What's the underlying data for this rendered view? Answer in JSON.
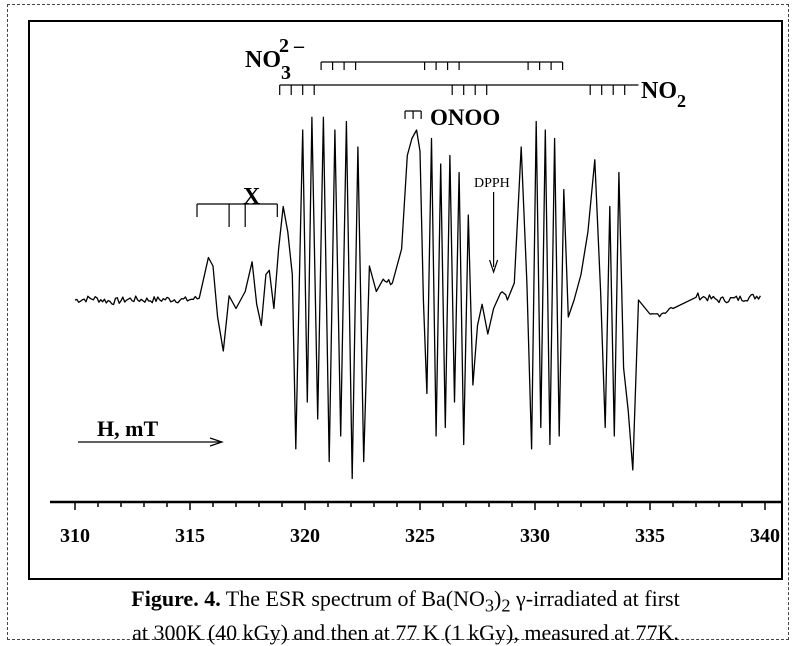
{
  "chart_data": {
    "type": "line",
    "title": "",
    "xlabel": "H, mT",
    "ylabel": "",
    "xlim": [
      310,
      340
    ],
    "xticks": [
      "310",
      "315",
      "320",
      "325",
      "330",
      "335",
      "340"
    ],
    "grid": false,
    "legend": "none",
    "series": [
      {
        "x": [
          310.0,
          310.8,
          311.6,
          312.4,
          313.2,
          314.0,
          314.8,
          315.4,
          315.8,
          316.0,
          316.2,
          316.45,
          316.7,
          317.0,
          317.4,
          317.7,
          317.9,
          318.1,
          318.3,
          318.45,
          318.65,
          318.85,
          319.05,
          319.25,
          319.45,
          319.6,
          319.75,
          319.9,
          320.1,
          320.3,
          320.55,
          320.8,
          321.05,
          321.3,
          321.55,
          321.8,
          322.05,
          322.3,
          322.55,
          322.8,
          323.1,
          323.4,
          323.8,
          324.2,
          324.45,
          324.65,
          324.85,
          325.0,
          325.15,
          325.3,
          325.5,
          325.7,
          325.9,
          326.1,
          326.3,
          326.5,
          326.7,
          326.9,
          327.1,
          327.3,
          327.5,
          327.7,
          327.95,
          328.2,
          328.5,
          328.8,
          329.1,
          329.4,
          329.65,
          329.85,
          330.05,
          330.25,
          330.45,
          330.65,
          330.85,
          331.05,
          331.25,
          331.45,
          331.7,
          332.0,
          332.3,
          332.6,
          332.85,
          333.05,
          333.25,
          333.45,
          333.65,
          333.85,
          334.05,
          334.25,
          334.5,
          335.0,
          336.0,
          337.0,
          338.0,
          339.0,
          339.8
        ],
        "y": [
          0.0,
          0.02,
          -0.02,
          0.01,
          0.0,
          0.01,
          0.0,
          0.02,
          0.5,
          0.4,
          -0.2,
          -0.6,
          0.05,
          -0.1,
          0.1,
          0.45,
          -0.05,
          -0.3,
          0.3,
          0.35,
          -0.1,
          0.6,
          1.1,
          0.8,
          0.3,
          -1.75,
          0.2,
          2.0,
          -1.2,
          2.15,
          -1.4,
          2.15,
          -1.9,
          2.0,
          -1.6,
          2.1,
          -2.1,
          1.8,
          -1.9,
          0.4,
          0.1,
          0.25,
          0.2,
          0.6,
          1.7,
          1.9,
          2.0,
          1.75,
          0.0,
          -1.1,
          1.9,
          -1.6,
          1.6,
          -1.5,
          1.7,
          -1.2,
          1.5,
          -1.7,
          1.0,
          -1.0,
          -0.3,
          -0.05,
          -0.4,
          -0.1,
          0.1,
          0.0,
          0.2,
          1.8,
          0.2,
          -1.75,
          2.1,
          -1.5,
          2.0,
          -1.7,
          1.9,
          -1.6,
          1.3,
          -0.2,
          0.0,
          0.3,
          0.8,
          1.65,
          0.1,
          -1.5,
          1.1,
          -1.6,
          1.5,
          -0.8,
          -1.3,
          -2.0,
          0.0,
          -0.2,
          -0.1,
          0.05,
          0.0,
          0.02,
          0.05
        ]
      }
    ],
    "annotations": {
      "x_group": {
        "label": "X",
        "ticks": [
          316.0,
          316.7,
          317.4,
          318.1
        ]
      },
      "nitrate_group": {
        "ticks": [
          320.7,
          321.2,
          321.7,
          322.2,
          325.2,
          325.7,
          326.2,
          326.7,
          329.7,
          330.2,
          330.7,
          331.2
        ]
      },
      "no2_group": {
        "ticks": [
          318.9,
          319.4,
          319.9,
          320.4,
          326.4,
          326.9,
          327.4,
          327.9,
          332.4,
          332.9,
          333.4,
          333.9
        ]
      },
      "onoo_group": {
        "label": "ONOO",
        "ticks": [
          324.35,
          324.7,
          325.05
        ]
      },
      "dpph": {
        "label": "DPPH",
        "position": 328.2
      }
    }
  },
  "labels": {
    "nitrate_base": "NO",
    "nitrate_sub": "3",
    "nitrate_sup": "2 –",
    "no2_base": "NO",
    "no2_sub": "2"
  },
  "caption": {
    "lead": "Figure. 4.",
    "line1_rest": " The ESR spectrum of Ba(NO",
    "line1_sub_a": "3",
    "line1_close": ")",
    "line1_sub_b": "2",
    "line1_end": " γ-irradiated at first",
    "line2": "at 300K (40 kGy) and then at 77 K (1 kGy), measured at 77K."
  }
}
